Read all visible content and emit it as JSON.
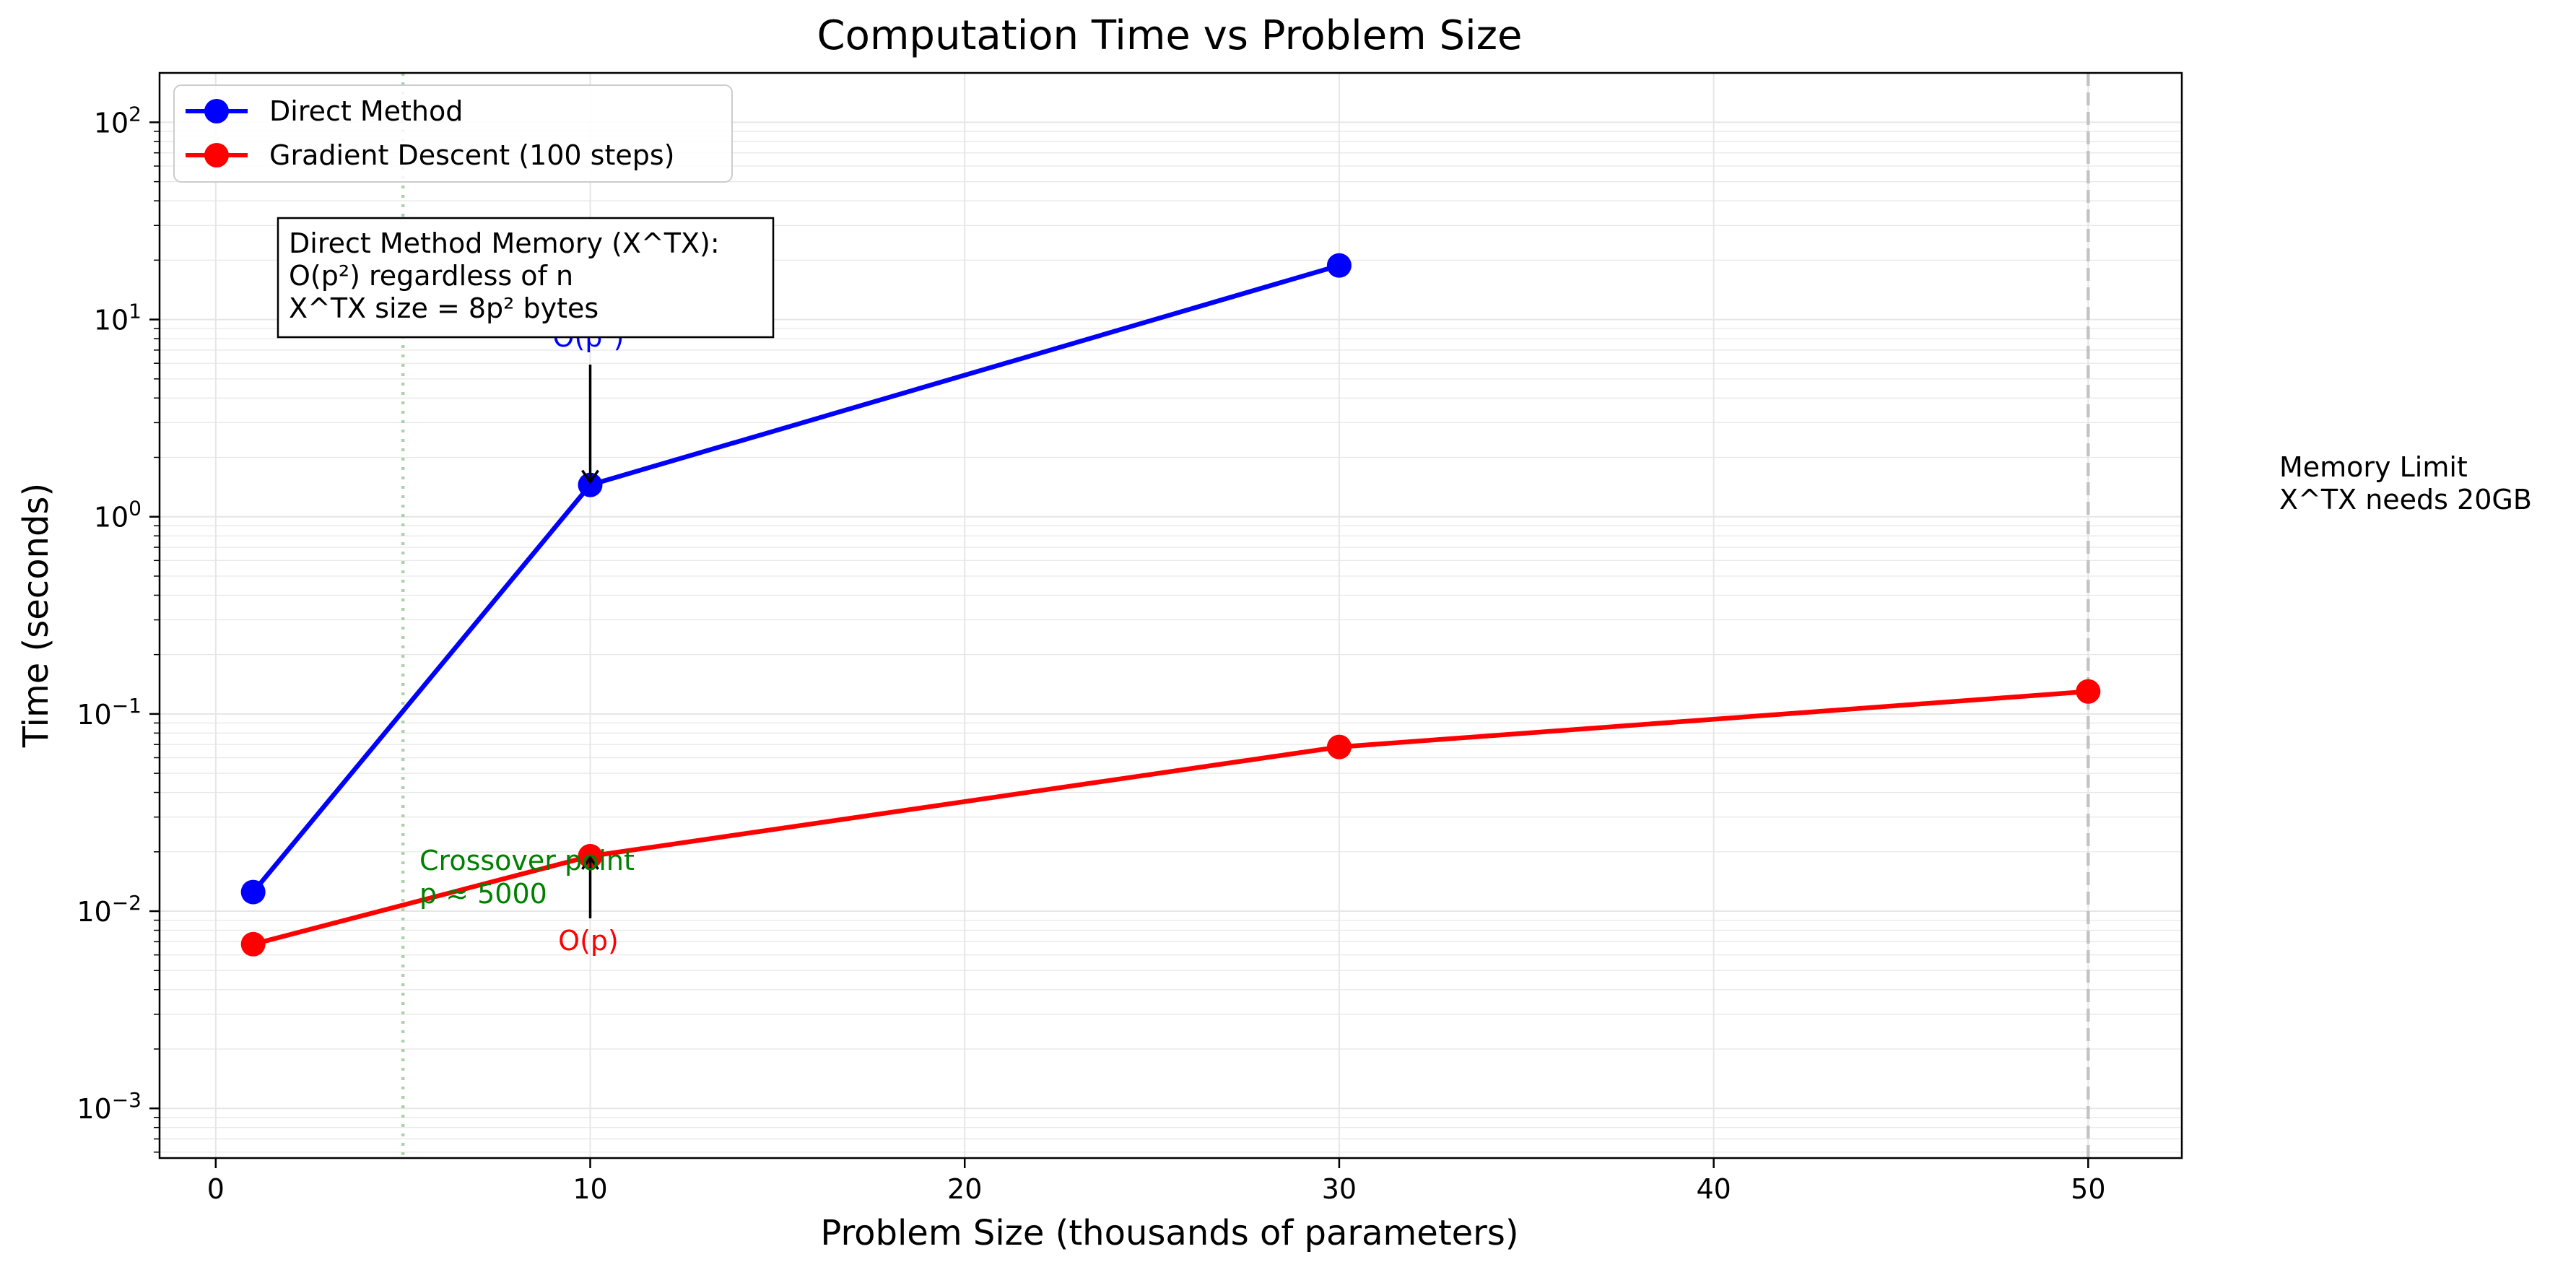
{
  "chart_data": {
    "type": "line",
    "title": "Computation Time vs Problem Size",
    "xlabel": "Problem Size (thousands of parameters)",
    "ylabel": "Time (seconds)",
    "xlim": [
      -1.5,
      52.5
    ],
    "ylim": [
      0.00056,
      178
    ],
    "yscale": "log",
    "grid": true,
    "legend": "top-left",
    "x_ticks": [
      0,
      10,
      20,
      30,
      40,
      50
    ],
    "y_ticks": [
      {
        "value": 0.001,
        "base": "10",
        "exp": "−3"
      },
      {
        "value": 0.01,
        "base": "10",
        "exp": "−2"
      },
      {
        "value": 0.1,
        "base": "10",
        "exp": "−1"
      },
      {
        "value": 1,
        "base": "10",
        "exp": "0"
      },
      {
        "value": 10,
        "base": "10",
        "exp": "1"
      },
      {
        "value": 100,
        "base": "10",
        "exp": "2"
      }
    ],
    "series": [
      {
        "name": "Direct Method",
        "color": "#0000ff",
        "x": [
          1,
          10,
          30
        ],
        "y": [
          0.0125,
          1.45,
          18.8
        ]
      },
      {
        "name": "Gradient Descent (100 steps)",
        "color": "#ff0000",
        "x": [
          1,
          10,
          30,
          50
        ],
        "y": [
          0.0068,
          0.019,
          0.068,
          0.13
        ]
      }
    ],
    "reference_lines": [
      {
        "x": 5,
        "color": "#99cc99",
        "style": "dotted"
      },
      {
        "x": 50,
        "color": "#bbbbbb",
        "style": "dashed"
      }
    ],
    "annotations": {
      "memory_box": [
        "Direct Method Memory (X^TX):",
        "O(p²) regardless of n",
        "X^TX size = 8p² bytes"
      ],
      "op3_label": "O(p³)",
      "op_label": "O(p)",
      "crossover": [
        "Crossover point",
        "p ≈ 5000"
      ],
      "memory_limit": [
        "Memory Limit",
        "X^TX needs 20GB"
      ]
    },
    "colors": {
      "direct": "#0000ff",
      "gradient": "#ff0000",
      "crossover": "#008000",
      "annotation_text": "#000000"
    }
  }
}
